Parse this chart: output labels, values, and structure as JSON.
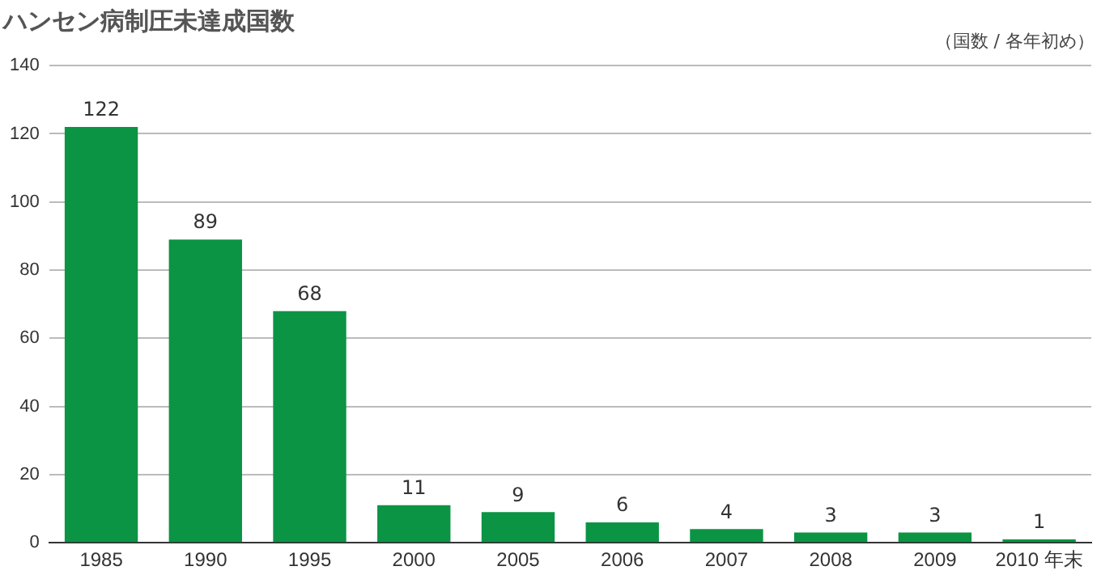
{
  "chart_data": {
    "type": "bar",
    "title": "ハンセン病制圧未達成国数",
    "annotations": [
      "（国数 / 各年初め）"
    ],
    "categories": [
      "1985",
      "1990",
      "1995",
      "2000",
      "2005",
      "2006",
      "2007",
      "2008",
      "2009",
      "2010 年末"
    ],
    "values": [
      122,
      89,
      68,
      11,
      9,
      6,
      4,
      3,
      3,
      1
    ],
    "color": "#0b9444",
    "ylim": [
      0,
      140
    ],
    "yticks": [
      0,
      20,
      40,
      60,
      80,
      100,
      120,
      140
    ],
    "grid": "y",
    "data_labels": true
  }
}
